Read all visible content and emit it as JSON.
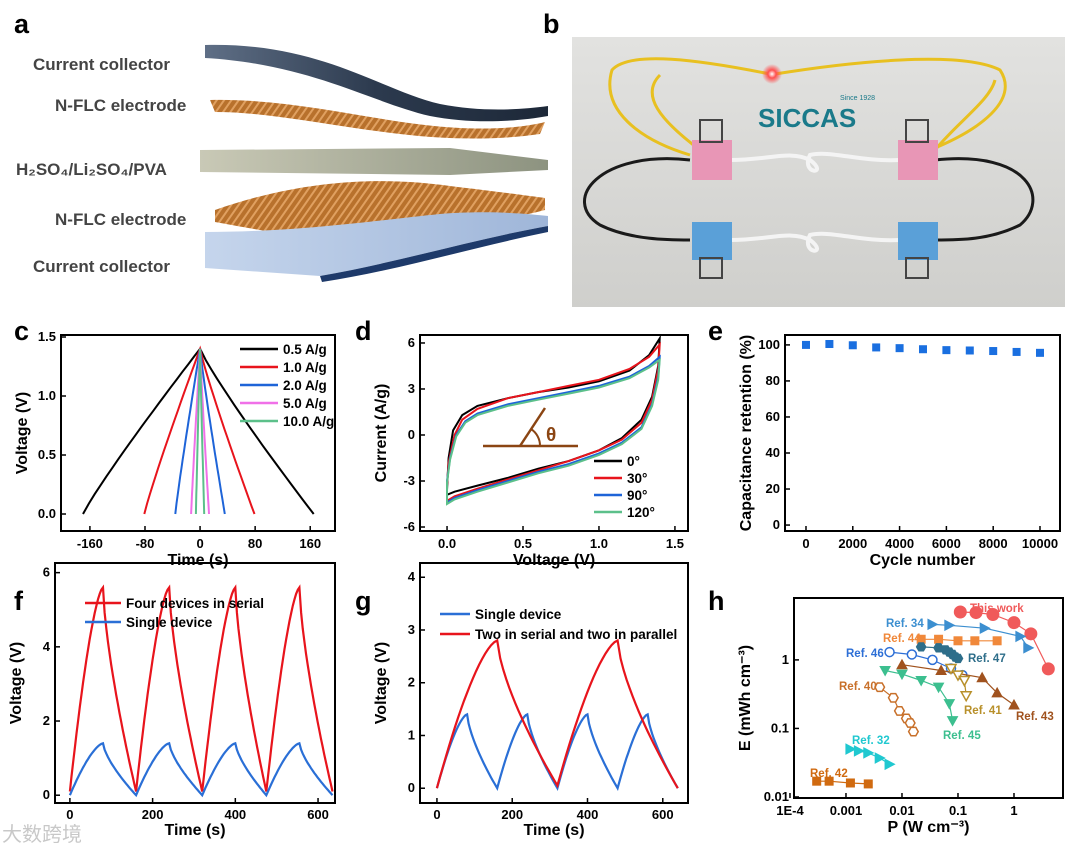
{
  "panels": {
    "a": {
      "label": "a",
      "layers": [
        "Current collector",
        "N-FLC electrode",
        "H₂SO₄/Li₂SO₄/PVA",
        "N-FLC electrode",
        "Current collector"
      ]
    },
    "b": {
      "label": "b",
      "logo_text": "SICCAS",
      "logo_sub": "Since 1928"
    },
    "c": {
      "label": "c"
    },
    "d": {
      "label": "d"
    },
    "e": {
      "label": "e"
    },
    "f": {
      "label": "f"
    },
    "g": {
      "label": "g"
    },
    "h": {
      "label": "h"
    }
  },
  "watermark": "大数跨境",
  "chart_data": [
    {
      "panel": "c",
      "type": "line",
      "xlabel": "Time (s)",
      "ylabel": "Voltage (V)",
      "xlim": [
        -202,
        196
      ],
      "ylim": [
        -0.144,
        1.517
      ],
      "xticks": [
        -160,
        -80,
        0,
        80,
        160
      ],
      "xtick_labels": [
        "-160",
        "-80",
        "0",
        "80",
        "160"
      ],
      "yticks": [
        0,
        0.5,
        1.0,
        1.5
      ],
      "ytick_labels": [
        "0.0",
        "0.5",
        "1.0",
        "1.5"
      ],
      "legend_position": "top-right",
      "series": [
        {
          "name": "0.5 A/g",
          "color": "#000000",
          "charge_start": -170,
          "discharge_end": 165,
          "peak_voltage": 1.4
        },
        {
          "name": "1.0 A/g",
          "color": "#e8141c",
          "charge_start": -81,
          "discharge_end": 79,
          "peak_voltage": 1.4
        },
        {
          "name": "2.0 A/g",
          "color": "#1e64d8",
          "charge_start": -36,
          "discharge_end": 36,
          "peak_voltage": 1.4
        },
        {
          "name": "5.0 A/g",
          "color": "#f070e8",
          "charge_start": -13,
          "discharge_end": 13,
          "peak_voltage": 1.4
        },
        {
          "name": "10.0 A/g",
          "color": "#5cc08a",
          "charge_start": -6,
          "discharge_end": 6,
          "peak_voltage": 1.4
        }
      ]
    },
    {
      "panel": "d",
      "type": "line",
      "xlabel": "Voltage (V)",
      "ylabel": "Current (A/g)",
      "xlim": [
        -0.178,
        1.586
      ],
      "ylim": [
        -6.26,
        6.52
      ],
      "xticks": [
        0,
        0.5,
        1.0,
        1.5
      ],
      "xtick_labels": [
        "0.0",
        "0.5",
        "1.0",
        "1.5"
      ],
      "yticks": [
        -6,
        -3,
        0,
        3,
        6
      ],
      "ytick_labels": [
        "-6",
        "-3",
        "0",
        "3",
        "6"
      ],
      "annotation": "θ",
      "legend_position": "bottom-right",
      "series": [
        {
          "name": "0°",
          "color": "#000000",
          "points": [
            [
              0,
              -3.6
            ],
            [
              0.01,
              -1.5
            ],
            [
              0.04,
              0.3
            ],
            [
              0.1,
              1.3
            ],
            [
              0.2,
              1.9
            ],
            [
              0.4,
              2.4
            ],
            [
              0.6,
              2.8
            ],
            [
              0.8,
              3.1
            ],
            [
              1.0,
              3.5
            ],
            [
              1.2,
              4.2
            ],
            [
              1.33,
              5.2
            ],
            [
              1.4,
              6.3
            ],
            [
              1.39,
              4.5
            ],
            [
              1.35,
              2.5
            ],
            [
              1.28,
              1.0
            ],
            [
              1.15,
              -0.2
            ],
            [
              1.0,
              -1.0
            ],
            [
              0.8,
              -1.7
            ],
            [
              0.6,
              -2.2
            ],
            [
              0.4,
              -2.8
            ],
            [
              0.2,
              -3.3
            ],
            [
              0.05,
              -3.7
            ],
            [
              0,
              -3.9
            ]
          ]
        },
        {
          "name": "30°",
          "color": "#e8141c",
          "points": [
            [
              0,
              -3.3
            ],
            [
              0.01,
              -1.8
            ],
            [
              0.05,
              0
            ],
            [
              0.1,
              1.0
            ],
            [
              0.2,
              1.7
            ],
            [
              0.4,
              2.4
            ],
            [
              0.6,
              2.8
            ],
            [
              0.8,
              3.2
            ],
            [
              1.0,
              3.6
            ],
            [
              1.2,
              4.3
            ],
            [
              1.33,
              5.1
            ],
            [
              1.4,
              5.9
            ],
            [
              1.39,
              4.3
            ],
            [
              1.35,
              2.3
            ],
            [
              1.28,
              0.8
            ],
            [
              1.15,
              -0.3
            ],
            [
              1.0,
              -1.0
            ],
            [
              0.8,
              -1.7
            ],
            [
              0.6,
              -2.3
            ],
            [
              0.4,
              -2.9
            ],
            [
              0.2,
              -3.5
            ],
            [
              0.05,
              -4.0
            ],
            [
              0,
              -4.3
            ]
          ]
        },
        {
          "name": "90°",
          "color": "#1e64d8",
          "points": [
            [
              0,
              -3.0
            ],
            [
              0.02,
              -1.5
            ],
            [
              0.06,
              0
            ],
            [
              0.12,
              0.9
            ],
            [
              0.2,
              1.4
            ],
            [
              0.4,
              2.0
            ],
            [
              0.6,
              2.4
            ],
            [
              0.8,
              2.8
            ],
            [
              1.0,
              3.2
            ],
            [
              1.2,
              3.8
            ],
            [
              1.33,
              4.5
            ],
            [
              1.4,
              5.1
            ],
            [
              1.39,
              3.8
            ],
            [
              1.35,
              2.0
            ],
            [
              1.28,
              0.5
            ],
            [
              1.15,
              -0.5
            ],
            [
              1.0,
              -1.2
            ],
            [
              0.8,
              -1.9
            ],
            [
              0.6,
              -2.4
            ],
            [
              0.4,
              -3.0
            ],
            [
              0.2,
              -3.6
            ],
            [
              0.05,
              -4.1
            ],
            [
              0,
              -4.4
            ]
          ]
        },
        {
          "name": "120°",
          "color": "#5cc08a",
          "points": [
            [
              0,
              -3.1
            ],
            [
              0.02,
              -1.6
            ],
            [
              0.06,
              -0.1
            ],
            [
              0.12,
              0.8
            ],
            [
              0.2,
              1.3
            ],
            [
              0.4,
              1.9
            ],
            [
              0.6,
              2.3
            ],
            [
              0.8,
              2.7
            ],
            [
              1.0,
              3.1
            ],
            [
              1.2,
              3.7
            ],
            [
              1.33,
              4.4
            ],
            [
              1.4,
              4.9
            ],
            [
              1.39,
              3.6
            ],
            [
              1.35,
              1.9
            ],
            [
              1.28,
              0.4
            ],
            [
              1.15,
              -0.6
            ],
            [
              1.0,
              -1.3
            ],
            [
              0.8,
              -2.0
            ],
            [
              0.6,
              -2.5
            ],
            [
              0.4,
              -3.1
            ],
            [
              0.2,
              -3.7
            ],
            [
              0.05,
              -4.2
            ],
            [
              0,
              -4.5
            ]
          ]
        }
      ]
    },
    {
      "panel": "e",
      "type": "scatter",
      "xlabel": "Cycle number",
      "ylabel": "Capacitance retention (%)",
      "xlim": [
        -897,
        10855
      ],
      "ylim": [
        -3.3,
        105.5
      ],
      "xticks": [
        0,
        2000,
        4000,
        6000,
        8000,
        10000
      ],
      "xtick_labels": [
        "0",
        "2000",
        "4000",
        "6000",
        "8000",
        "10000"
      ],
      "yticks": [
        0,
        20,
        40,
        60,
        80,
        100
      ],
      "ytick_labels": [
        "0",
        "20",
        "40",
        "60",
        "80",
        "100"
      ],
      "series": [
        {
          "name": "retention",
          "color": "#1a6fe0",
          "x": [
            0,
            1000,
            2000,
            3000,
            4000,
            5000,
            6000,
            7000,
            8000,
            9000,
            10000
          ],
          "y": [
            100,
            100.5,
            99.8,
            98.6,
            98.2,
            97.6,
            97.1,
            96.9,
            96.6,
            96.1,
            95.6
          ]
        }
      ]
    },
    {
      "panel": "f",
      "type": "line",
      "xlabel": "Time (s)",
      "ylabel": "Voltage (V)",
      "xlim": [
        -36,
        641
      ],
      "ylim": [
        -0.21,
        6.26
      ],
      "xticks": [
        0,
        200,
        400,
        600
      ],
      "xtick_labels": [
        "0",
        "200",
        "400",
        "600"
      ],
      "yticks": [
        0,
        2,
        4,
        6
      ],
      "ytick_labels": [
        "0",
        "2",
        "4",
        "6"
      ],
      "legend_position": "top-left",
      "series": [
        {
          "name": "Four devices in serial",
          "color": "#e8141c",
          "x": [
            0,
            80,
            160,
            240,
            320,
            400,
            475,
            555,
            635
          ],
          "y": [
            0.1,
            5.6,
            0.1,
            5.6,
            0.1,
            5.6,
            0.1,
            5.6,
            0.1
          ]
        },
        {
          "name": "Single device",
          "color": "#2a6fd6",
          "x": [
            0,
            80,
            160,
            240,
            320,
            400,
            475,
            555,
            635
          ],
          "y": [
            0,
            1.4,
            0,
            1.4,
            0,
            1.4,
            0,
            1.4,
            0
          ]
        }
      ]
    },
    {
      "panel": "g",
      "type": "line",
      "xlabel": "Time (s)",
      "ylabel": "Voltage (V)",
      "xlim": [
        -45,
        667
      ],
      "ylim": [
        -0.28,
        4.27
      ],
      "xticks": [
        0,
        200,
        400,
        600
      ],
      "xtick_labels": [
        "0",
        "200",
        "400",
        "600"
      ],
      "yticks": [
        0,
        1,
        2,
        3,
        4
      ],
      "ytick_labels": [
        "0",
        "1",
        "2",
        "3",
        "4"
      ],
      "legend_position": "top-left",
      "series": [
        {
          "name": "Single device",
          "color": "#2a6fd6",
          "x": [
            0,
            80,
            160,
            240,
            320,
            400,
            480,
            560,
            640
          ],
          "y": [
            0,
            1.4,
            0,
            1.4,
            0,
            1.4,
            0,
            1.4,
            0
          ]
        },
        {
          "name": "Two in serial and two in parallel",
          "color": "#e8141c",
          "x": [
            0,
            160,
            320,
            480,
            640
          ],
          "y": [
            0,
            2.8,
            0.05,
            2.8,
            0
          ]
        }
      ]
    },
    {
      "panel": "h",
      "type": "scatter",
      "xlabel": "P (W cm⁻³)",
      "ylabel": "E (mWh cm⁻³)",
      "xscale": "log",
      "yscale": "log",
      "xlim": [
        0.000118,
        7.5
      ],
      "ylim": [
        0.00966,
        8.0
      ],
      "xticks": [
        0.0001,
        0.001,
        0.01,
        0.1,
        1
      ],
      "xtick_labels": [
        "1E-4",
        "0.001",
        "0.01",
        "0.1",
        "1"
      ],
      "yticks": [
        0.01,
        0.1,
        1
      ],
      "ytick_labels": [
        "0.01",
        "0.1",
        "1"
      ],
      "series": [
        {
          "name": "This work",
          "color": "#f05a5a",
          "marker": "circle",
          "x": [
            0.11,
            0.21,
            0.42,
            1.0,
            2.0,
            4.1
          ],
          "y": [
            5.0,
            4.9,
            4.6,
            3.5,
            2.4,
            0.74
          ]
        },
        {
          "name": "Ref. 34",
          "color": "#3c8fd0",
          "marker": "triangle-right",
          "x": [
            0.035,
            0.07,
            0.3,
            1.3,
            1.8
          ],
          "y": [
            3.3,
            3.2,
            2.9,
            2.2,
            1.5
          ]
        },
        {
          "name": "Ref. 44",
          "color": "#f0883a",
          "marker": "square",
          "x": [
            0.022,
            0.045,
            0.1,
            0.2,
            0.5
          ],
          "y": [
            2.0,
            2.0,
            1.9,
            1.9,
            1.9
          ]
        },
        {
          "name": "Ref. 47",
          "color": "#2e6e8a",
          "marker": "hexagon",
          "x": [
            0.022,
            0.045,
            0.06,
            0.07,
            0.08,
            0.09,
            0.1
          ],
          "y": [
            1.55,
            1.5,
            1.4,
            1.3,
            1.2,
            1.1,
            1.05
          ]
        },
        {
          "name": "Ref. 46",
          "color": "#2d6fd6",
          "marker": "circle-open",
          "x": [
            0.006,
            0.015,
            0.035,
            0.075,
            0.12
          ],
          "y": [
            1.3,
            1.2,
            1.0,
            0.75,
            0.6
          ]
        },
        {
          "name": "Ref. 43",
          "color": "#a0521e",
          "marker": "triangle-up",
          "x": [
            0.01,
            0.05,
            0.27,
            0.5,
            1.0
          ],
          "y": [
            0.85,
            0.7,
            0.55,
            0.33,
            0.22
          ]
        },
        {
          "name": "Ref. 41",
          "color": "#b8902a",
          "marker": "triangle-down-open",
          "x": [
            0.075,
            0.1,
            0.13,
            0.14
          ],
          "y": [
            0.75,
            0.6,
            0.5,
            0.3
          ]
        },
        {
          "name": "Ref. 45",
          "color": "#3cbf8f",
          "marker": "triangle-down",
          "x": [
            0.005,
            0.01,
            0.022,
            0.045,
            0.07,
            0.08
          ],
          "y": [
            0.7,
            0.62,
            0.5,
            0.4,
            0.23,
            0.13
          ]
        },
        {
          "name": "Ref. 40",
          "color": "#c8702a",
          "marker": "hexagon-open",
          "x": [
            0.004,
            0.007,
            0.009,
            0.012,
            0.014,
            0.016
          ],
          "y": [
            0.4,
            0.28,
            0.18,
            0.14,
            0.12,
            0.09
          ]
        },
        {
          "name": "Ref. 32",
          "color": "#20c8d0",
          "marker": "triangle-right",
          "x": [
            0.0012,
            0.0017,
            0.0025,
            0.004,
            0.006
          ],
          "y": [
            0.05,
            0.047,
            0.044,
            0.037,
            0.03
          ]
        },
        {
          "name": "Ref. 42",
          "color": "#d06a10",
          "marker": "square",
          "x": [
            0.0003,
            0.0005,
            0.0012,
            0.0025
          ],
          "y": [
            0.017,
            0.017,
            0.016,
            0.0155
          ]
        }
      ]
    }
  ]
}
